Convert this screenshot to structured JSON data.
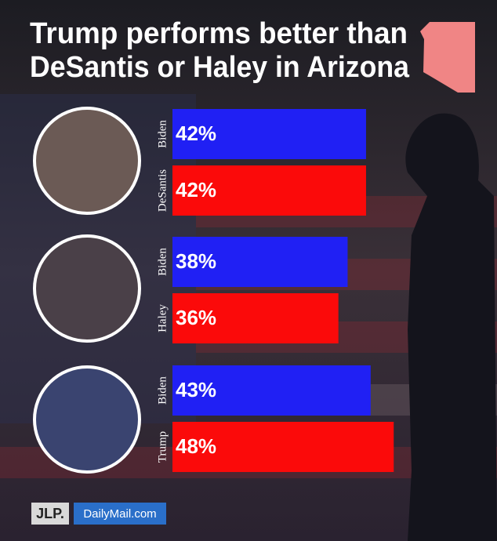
{
  "chart_data": {
    "type": "bar",
    "orientation": "horizontal",
    "title": [
      "Trump performs better than",
      "DeSantis or Haley in Arizona"
    ],
    "categories": [
      "Biden",
      "DeSantis",
      "Biden",
      "Haley",
      "Biden",
      "Trump"
    ],
    "values": [
      42,
      42,
      38,
      36,
      43,
      48
    ],
    "value_labels": [
      "42%",
      "42%",
      "38%",
      "36%",
      "43%",
      "48%"
    ],
    "colors": [
      "#2020f4",
      "#fb0a0a",
      "#2020f4",
      "#fb0a0a",
      "#2020f4",
      "#fb0a0a"
    ],
    "source": [
      "JLP.",
      "DailyMail.com"
    ]
  }
}
